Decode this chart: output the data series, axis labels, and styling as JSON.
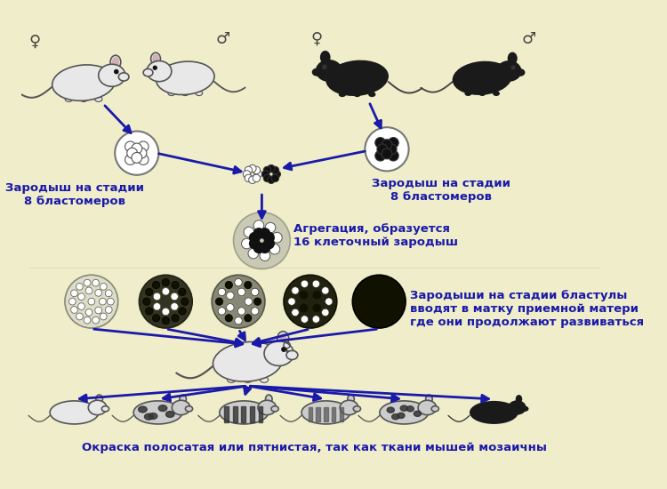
{
  "bg_color": "#f0edca",
  "arrow_color": "#1a1aaa",
  "text_color": "#1a1aaa",
  "label_fontsize": 9.5,
  "labels": {
    "embryo_left": "Зародыш на стадии\n8 бластомеров",
    "embryo_right": "Зародыш на стадии\n8 бластомеров",
    "aggregation": "Агрегация, образуется\n16 клеточный зародыш",
    "blastula": "Зародыши на стадии бластулы\nвводят в матку приемной матери\nгде они продолжают развиваться",
    "coloring": "Окраска полосатая или пятнистая, так как ткани мышей мозаичны"
  },
  "gender_female": "♀",
  "gender_male": "♂"
}
